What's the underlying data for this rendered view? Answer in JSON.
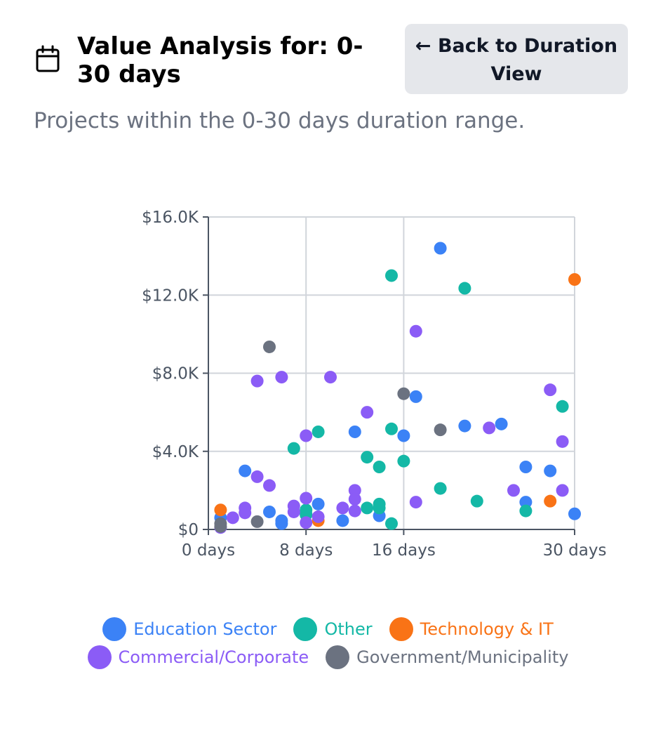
{
  "header": {
    "title": "Value Analysis for: 0-30 days",
    "back_button_label": "← Back to Duration View",
    "subtitle": "Projects within the 0-30 days duration range."
  },
  "chart_data": {
    "type": "scatter",
    "xlim": [
      0,
      30
    ],
    "ylim": [
      0,
      16000
    ],
    "x_ticks": [
      {
        "value": 0,
        "label": "0 days"
      },
      {
        "value": 8,
        "label": "8 days"
      },
      {
        "value": 16,
        "label": "16 days"
      },
      {
        "value": 30,
        "label": "30 days"
      }
    ],
    "y_ticks": [
      {
        "value": 0,
        "label": "$0"
      },
      {
        "value": 4000,
        "label": "$4.0K"
      },
      {
        "value": 8000,
        "label": "$8.0K"
      },
      {
        "value": 12000,
        "label": "$12.0K"
      },
      {
        "value": 16000,
        "label": "$16.0K"
      }
    ],
    "grid": true,
    "legend_position": "bottom",
    "series": [
      {
        "name": "Education Sector",
        "color": "#3b82f6",
        "points": [
          [
            1,
            600
          ],
          [
            3,
            3000
          ],
          [
            5,
            900
          ],
          [
            6,
            300
          ],
          [
            6,
            450
          ],
          [
            8,
            800
          ],
          [
            9,
            1300
          ],
          [
            11,
            450
          ],
          [
            12,
            5000
          ],
          [
            14,
            700
          ],
          [
            16,
            4800
          ],
          [
            17,
            6800
          ],
          [
            19,
            14400
          ],
          [
            21,
            5300
          ],
          [
            24,
            5400
          ],
          [
            26,
            3200
          ],
          [
            26,
            1400
          ],
          [
            28,
            3000
          ],
          [
            30,
            800
          ]
        ]
      },
      {
        "name": "Other",
        "color": "#14b8a6",
        "points": [
          [
            7,
            4150
          ],
          [
            8,
            1000
          ],
          [
            8,
            750
          ],
          [
            9,
            5000
          ],
          [
            13,
            3700
          ],
          [
            13,
            1100
          ],
          [
            14,
            3200
          ],
          [
            14,
            1100
          ],
          [
            14,
            1300
          ],
          [
            15,
            13000
          ],
          [
            15,
            5150
          ],
          [
            15,
            300
          ],
          [
            16,
            3500
          ],
          [
            19,
            2100
          ],
          [
            21,
            12350
          ],
          [
            22,
            1450
          ],
          [
            26,
            950
          ],
          [
            29,
            6300
          ]
        ]
      },
      {
        "name": "Technology & IT",
        "color": "#f97316",
        "points": [
          [
            1,
            1000
          ],
          [
            9,
            450
          ],
          [
            28,
            1450
          ],
          [
            30,
            12800
          ]
        ]
      },
      {
        "name": "Commercial/Corporate",
        "color": "#8b5cf6",
        "points": [
          [
            1,
            100
          ],
          [
            2,
            600
          ],
          [
            3,
            850
          ],
          [
            3,
            1100
          ],
          [
            4,
            7600
          ],
          [
            4,
            2700
          ],
          [
            5,
            2250
          ],
          [
            6,
            7800
          ],
          [
            7,
            900
          ],
          [
            7,
            1200
          ],
          [
            8,
            4800
          ],
          [
            8,
            1600
          ],
          [
            8,
            350
          ],
          [
            9,
            650
          ],
          [
            10,
            7800
          ],
          [
            11,
            1100
          ],
          [
            12,
            2000
          ],
          [
            12,
            950
          ],
          [
            12,
            1550
          ],
          [
            13,
            6000
          ],
          [
            17,
            10150
          ],
          [
            17,
            1400
          ],
          [
            23,
            5200
          ],
          [
            25,
            2000
          ],
          [
            28,
            7150
          ],
          [
            29,
            4500
          ],
          [
            29,
            2000
          ]
        ]
      },
      {
        "name": "Government/Municipality",
        "color": "#6b7280",
        "points": [
          [
            1,
            300
          ],
          [
            1,
            150
          ],
          [
            4,
            400
          ],
          [
            5,
            9350
          ],
          [
            16,
            6950
          ],
          [
            19,
            5100
          ]
        ]
      }
    ]
  },
  "legend": {
    "rows": [
      [
        {
          "label": "Education Sector",
          "color": "#3b82f6"
        },
        {
          "label": "Other",
          "color": "#14b8a6"
        },
        {
          "label": "Technology & IT",
          "color": "#f97316"
        }
      ],
      [
        {
          "label": "Commercial/Corporate",
          "color": "#8b5cf6"
        },
        {
          "label": "Government/Municipality",
          "color": "#6b7280"
        }
      ]
    ]
  }
}
